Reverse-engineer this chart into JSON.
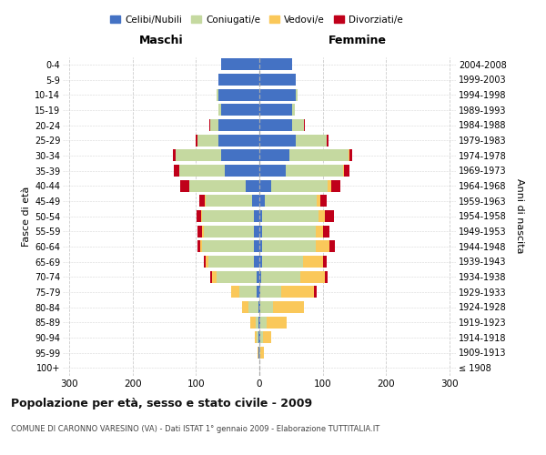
{
  "age_groups": [
    "100+",
    "95-99",
    "90-94",
    "85-89",
    "80-84",
    "75-79",
    "70-74",
    "65-69",
    "60-64",
    "55-59",
    "50-54",
    "45-49",
    "40-44",
    "35-39",
    "30-34",
    "25-29",
    "20-24",
    "15-19",
    "10-14",
    "5-9",
    "0-4"
  ],
  "birth_years": [
    "≤ 1908",
    "1909-1913",
    "1914-1918",
    "1919-1923",
    "1924-1928",
    "1929-1933",
    "1934-1938",
    "1939-1943",
    "1944-1948",
    "1949-1953",
    "1954-1958",
    "1959-1963",
    "1964-1968",
    "1969-1973",
    "1974-1978",
    "1979-1983",
    "1984-1988",
    "1989-1993",
    "1994-1998",
    "1999-2003",
    "2004-2008"
  ],
  "maschi": {
    "celibi": [
      0,
      1,
      1,
      1,
      2,
      4,
      5,
      8,
      8,
      8,
      8,
      12,
      22,
      55,
      60,
      65,
      65,
      60,
      65,
      65,
      60
    ],
    "coniugati": [
      0,
      1,
      3,
      5,
      15,
      28,
      62,
      72,
      82,
      80,
      82,
      72,
      88,
      72,
      72,
      33,
      13,
      4,
      2,
      0,
      0
    ],
    "vedovi": [
      0,
      1,
      3,
      8,
      10,
      12,
      8,
      4,
      3,
      2,
      2,
      2,
      1,
      0,
      0,
      0,
      0,
      0,
      0,
      0,
      0
    ],
    "divorziati": [
      0,
      0,
      0,
      0,
      0,
      0,
      3,
      3,
      5,
      7,
      7,
      9,
      14,
      8,
      5,
      2,
      1,
      0,
      0,
      0,
      0
    ]
  },
  "femmine": {
    "nubili": [
      0,
      0,
      1,
      1,
      2,
      2,
      3,
      4,
      4,
      4,
      5,
      9,
      18,
      42,
      48,
      58,
      52,
      52,
      58,
      58,
      52
    ],
    "coniugate": [
      0,
      2,
      5,
      10,
      20,
      32,
      62,
      65,
      85,
      85,
      88,
      82,
      90,
      90,
      92,
      48,
      18,
      4,
      2,
      0,
      0
    ],
    "vedove": [
      0,
      5,
      12,
      32,
      48,
      52,
      38,
      32,
      22,
      12,
      10,
      5,
      5,
      2,
      2,
      0,
      0,
      0,
      0,
      0,
      0
    ],
    "divorziate": [
      0,
      0,
      0,
      0,
      0,
      5,
      5,
      5,
      8,
      10,
      15,
      10,
      15,
      8,
      5,
      3,
      2,
      0,
      0,
      0,
      0
    ]
  },
  "colors": {
    "celibi": "#4472C4",
    "coniugati": "#C5D9A0",
    "vedovi": "#FAC85A",
    "divorziati": "#C0001A"
  },
  "xlim": 310,
  "title": "Popolazione per età, sesso e stato civile - 2009",
  "subtitle": "COMUNE DI CARONNO VARESINO (VA) - Dati ISTAT 1° gennaio 2009 - Elaborazione TUTTITALIA.IT",
  "ylabel_left": "Fasce di età",
  "ylabel_right": "Anni di nascita",
  "label_maschi": "Maschi",
  "label_femmine": "Femmine",
  "legend_labels": [
    "Celibi/Nubili",
    "Coniugati/e",
    "Vedovi/e",
    "Divorziati/e"
  ],
  "background_color": "#ffffff",
  "grid_color": "#cccccc"
}
